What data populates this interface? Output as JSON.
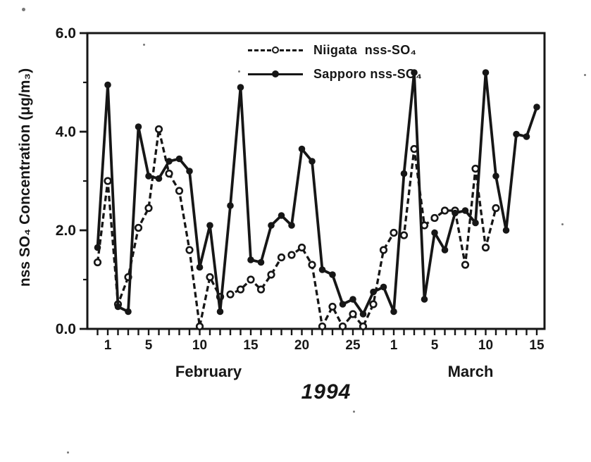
{
  "figure": {
    "year_title": "1994",
    "y_axis_label": "nss SO₄ Concentration (μg/m₃)",
    "months": [
      {
        "label": "February"
      },
      {
        "label": "March"
      }
    ]
  },
  "legend": [
    {
      "label": "Niigata  nss-SO₄",
      "series": "niigata",
      "swatch": "dashed-line-open-circle"
    },
    {
      "label": "Sapporo nss-SO₄",
      "series": "sapporo",
      "swatch": "solid-line-filled-circle"
    }
  ],
  "chart_data": {
    "type": "line",
    "title": "1994",
    "xlabel": "February / March 1994",
    "ylabel": "nss SO₄ Concentration (μg/m₃)",
    "ylim": [
      0,
      6
    ],
    "grid": false,
    "legend_position": "top-center-inside",
    "y_axis": {
      "major_tick_values": [
        0,
        2,
        4,
        6
      ],
      "major_tick_labels": [
        "0.0",
        "2.0",
        "4.0",
        "6.0"
      ],
      "minor_tick_values": [
        1,
        3,
        5
      ]
    },
    "x_axis": {
      "tick_labels": [
        {
          "index": 1,
          "label": "1"
        },
        {
          "index": 5,
          "label": "5"
        },
        {
          "index": 10,
          "label": "10"
        },
        {
          "index": 15,
          "label": "15"
        },
        {
          "index": 20,
          "label": "20"
        },
        {
          "index": 25,
          "label": "25"
        },
        {
          "index": 29,
          "label": "1"
        },
        {
          "index": 33,
          "label": "5"
        },
        {
          "index": 38,
          "label": "10"
        },
        {
          "index": 43,
          "label": "15"
        }
      ]
    },
    "categories": [
      "Jan 31",
      "Feb 1",
      "Feb 2",
      "Feb 3",
      "Feb 4",
      "Feb 5",
      "Feb 6",
      "Feb 7",
      "Feb 8",
      "Feb 9",
      "Feb 10",
      "Feb 11",
      "Feb 12",
      "Feb 13",
      "Feb 14",
      "Feb 15",
      "Feb 16",
      "Feb 17",
      "Feb 18",
      "Feb 19",
      "Feb 20",
      "Feb 21",
      "Feb 22",
      "Feb 23",
      "Feb 24",
      "Feb 25",
      "Feb 26",
      "Feb 27",
      "Feb 28",
      "Mar 1",
      "Mar 2",
      "Mar 3",
      "Mar 4",
      "Mar 5",
      "Mar 6",
      "Mar 7",
      "Mar 8",
      "Mar 9",
      "Mar 10",
      "Mar 11",
      "Mar 12",
      "Mar 13",
      "Mar 14",
      "Mar 15"
    ],
    "series": [
      {
        "id": "niigata",
        "name": "Niigata nss-SO₄",
        "line": "dashed",
        "marker": "open-circle",
        "color": "#161616",
        "values": [
          1.35,
          3.0,
          0.5,
          1.05,
          2.05,
          2.45,
          4.05,
          3.15,
          2.8,
          1.6,
          0.05,
          1.05,
          0.65,
          0.7,
          0.8,
          1.0,
          0.8,
          1.1,
          1.45,
          1.5,
          1.65,
          1.3,
          0.05,
          0.45,
          0.05,
          0.3,
          0.05,
          0.5,
          1.6,
          1.95,
          1.9,
          3.65,
          2.1,
          2.25,
          2.4,
          2.4,
          1.3,
          3.25,
          1.65,
          2.45,
          null,
          null,
          null,
          null
        ]
      },
      {
        "id": "sapporo",
        "name": "Sapporo nss-SO₄",
        "line": "solid",
        "marker": "filled-circle",
        "color": "#161616",
        "values": [
          1.65,
          4.95,
          0.45,
          0.35,
          4.1,
          3.1,
          3.05,
          3.4,
          3.45,
          3.2,
          1.25,
          2.1,
          0.35,
          2.5,
          4.9,
          1.4,
          1.35,
          2.1,
          2.3,
          2.1,
          3.65,
          3.4,
          1.2,
          1.1,
          0.5,
          0.6,
          0.3,
          0.75,
          0.85,
          0.35,
          3.15,
          5.2,
          0.6,
          1.95,
          1.6,
          2.35,
          2.4,
          2.15,
          5.2,
          3.1,
          2.0,
          3.95,
          3.9,
          4.5
        ]
      }
    ]
  },
  "ink_color": "#161616"
}
